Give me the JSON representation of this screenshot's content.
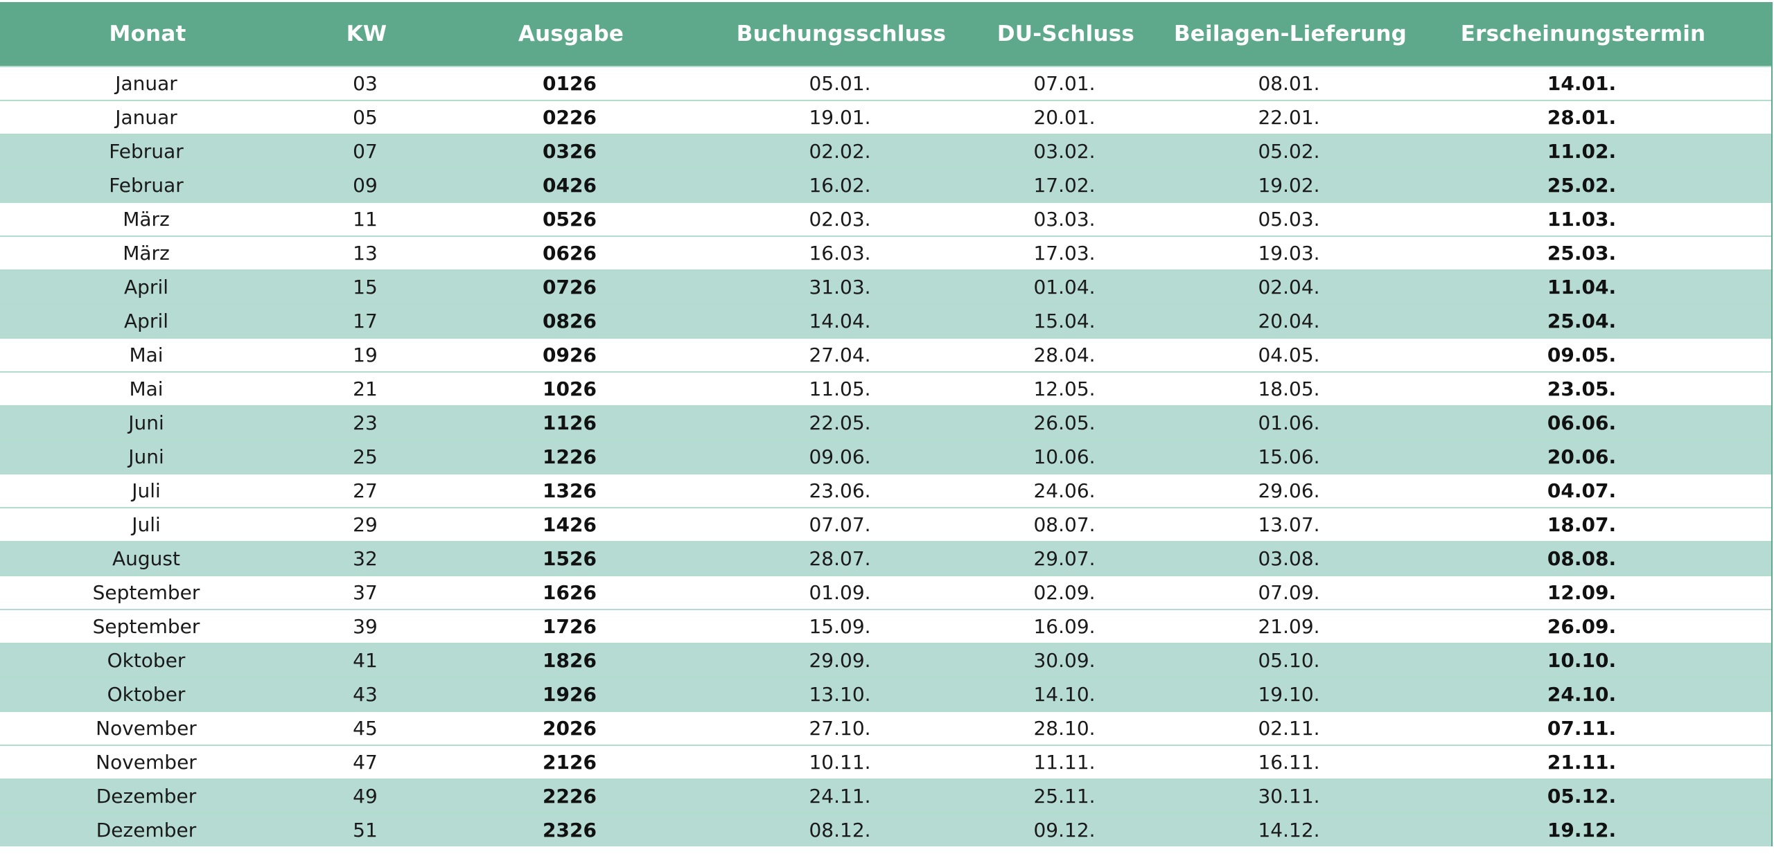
{
  "table": {
    "headers": [
      "Monat",
      "KW",
      "Ausgabe",
      "Buchungsschluss",
      "DU-Schluss",
      "Beilagen-Lieferung",
      "Erscheinungstermin"
    ],
    "rows": [
      {
        "band": "white",
        "cells": [
          "Januar",
          "03",
          "0126",
          "05.01.",
          "07.01.",
          "08.01.",
          "14.01."
        ]
      },
      {
        "band": "white",
        "cells": [
          "Januar",
          "05",
          "0226",
          "19.01.",
          "20.01.",
          "22.01.",
          "28.01."
        ]
      },
      {
        "band": "green",
        "cells": [
          "Februar",
          "07",
          "0326",
          "02.02.",
          "03.02.",
          "05.02.",
          "11.02."
        ]
      },
      {
        "band": "green",
        "cells": [
          "Februar",
          "09",
          "0426",
          "16.02.",
          "17.02.",
          "19.02.",
          "25.02."
        ]
      },
      {
        "band": "white",
        "cells": [
          "März",
          "11",
          "0526",
          "02.03.",
          "03.03.",
          "05.03.",
          "11.03."
        ]
      },
      {
        "band": "white",
        "cells": [
          "März",
          "13",
          "0626",
          "16.03.",
          "17.03.",
          "19.03.",
          "25.03."
        ]
      },
      {
        "band": "green",
        "cells": [
          "April",
          "15",
          "0726",
          "31.03.",
          "01.04.",
          "02.04.",
          "11.04."
        ]
      },
      {
        "band": "green",
        "cells": [
          "April",
          "17",
          "0826",
          "14.04.",
          "15.04.",
          "20.04.",
          "25.04."
        ]
      },
      {
        "band": "white",
        "cells": [
          "Mai",
          "19",
          "0926",
          "27.04.",
          "28.04.",
          "04.05.",
          "09.05."
        ]
      },
      {
        "band": "white",
        "cells": [
          "Mai",
          "21",
          "1026",
          "11.05.",
          "12.05.",
          "18.05.",
          "23.05."
        ]
      },
      {
        "band": "green",
        "cells": [
          "Juni",
          "23",
          "1126",
          "22.05.",
          "26.05.",
          "01.06.",
          "06.06."
        ]
      },
      {
        "band": "green",
        "cells": [
          "Juni",
          "25",
          "1226",
          "09.06.",
          "10.06.",
          "15.06.",
          "20.06."
        ]
      },
      {
        "band": "white",
        "cells": [
          "Juli",
          "27",
          "1326",
          "23.06.",
          "24.06.",
          "29.06.",
          "04.07."
        ]
      },
      {
        "band": "white",
        "cells": [
          "Juli",
          "29",
          "1426",
          "07.07.",
          "08.07.",
          "13.07.",
          "18.07."
        ]
      },
      {
        "band": "green",
        "cells": [
          "August",
          "32",
          "1526",
          "28.07.",
          "29.07.",
          "03.08.",
          "08.08."
        ]
      },
      {
        "band": "white",
        "cells": [
          "September",
          "37",
          "1626",
          "01.09.",
          "02.09.",
          "07.09.",
          "12.09."
        ]
      },
      {
        "band": "white",
        "cells": [
          "September",
          "39",
          "1726",
          "15.09.",
          "16.09.",
          "21.09.",
          "26.09."
        ]
      },
      {
        "band": "green",
        "cells": [
          "Oktober",
          "41",
          "1826",
          "29.09.",
          "30.09.",
          "05.10.",
          "10.10."
        ]
      },
      {
        "band": "green",
        "cells": [
          "Oktober",
          "43",
          "1926",
          "13.10.",
          "14.10.",
          "19.10.",
          "24.10."
        ]
      },
      {
        "band": "white",
        "cells": [
          "November",
          "45",
          "2026",
          "27.10.",
          "28.10.",
          "02.11.",
          "07.11."
        ]
      },
      {
        "band": "white",
        "cells": [
          "November",
          "47",
          "2126",
          "10.11.",
          "11.11.",
          "16.11.",
          "21.11."
        ]
      },
      {
        "band": "green",
        "cells": [
          "Dezember",
          "49",
          "2226",
          "24.11.",
          "25.11.",
          "30.11.",
          "05.12."
        ]
      },
      {
        "band": "green",
        "cells": [
          "Dezember",
          "51",
          "2326",
          "08.12.",
          "09.12.",
          "14.12.",
          "19.12."
        ]
      }
    ],
    "colors": {
      "header_bg": "#5ea88c",
      "band_green": "#b6dbd3",
      "band_white": "#ffffff"
    }
  }
}
